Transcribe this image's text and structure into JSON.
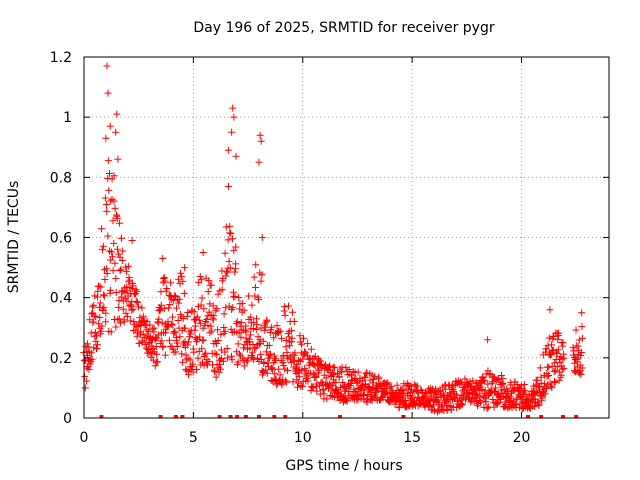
{
  "chart_data": {
    "type": "scatter",
    "title": "Day 196 of 2025, SRMTID for receiver pygr",
    "xlabel": "GPS time / hours",
    "ylabel": "SRMTID / TECUs",
    "xlim": [
      0,
      24
    ],
    "ylim": [
      0,
      1.2
    ],
    "xticks": [
      0,
      5,
      10,
      15,
      20
    ],
    "xtick_labels": [
      "0",
      "5",
      "10",
      "15",
      "20"
    ],
    "yticks": [
      0,
      0.2,
      0.4,
      0.6,
      0.8,
      1,
      1.2
    ],
    "ytick_labels": [
      "0",
      "0.2",
      "0.4",
      "0.6",
      "0.8",
      "1",
      "1.2"
    ],
    "grid": true,
    "series_color": "#ff0000",
    "marker": "plus",
    "envelope": {
      "x": [
        0.0,
        0.3,
        0.6,
        0.9,
        1.2,
        1.5,
        1.8,
        2.1,
        2.5,
        3.0,
        3.3,
        3.6,
        4.0,
        4.4,
        4.8,
        5.2,
        5.6,
        6.0,
        6.3,
        6.6,
        6.9,
        7.2,
        7.6,
        8.0,
        8.3,
        8.6,
        9.0,
        9.4,
        9.8,
        10.2,
        10.6,
        11.0,
        11.5,
        12.0,
        12.5,
        13.0,
        13.5,
        14.0,
        14.5,
        15.0,
        15.5,
        16.0,
        16.5,
        17.0,
        17.5,
        18.0,
        18.5,
        19.0,
        19.5,
        20.0,
        20.4,
        20.8,
        21.1,
        21.4,
        21.7,
        22.0,
        22.4,
        22.8
      ],
      "low": [
        0.08,
        0.18,
        0.22,
        0.3,
        0.28,
        0.3,
        0.32,
        0.32,
        0.25,
        0.2,
        0.16,
        0.2,
        0.22,
        0.18,
        0.14,
        0.16,
        0.18,
        0.13,
        0.16,
        0.2,
        0.18,
        0.16,
        0.2,
        0.14,
        0.12,
        0.12,
        0.1,
        0.12,
        0.1,
        0.1,
        0.08,
        0.06,
        0.06,
        0.05,
        0.06,
        0.05,
        0.06,
        0.05,
        0.03,
        0.04,
        0.04,
        0.02,
        0.02,
        0.03,
        0.05,
        0.04,
        0.03,
        0.04,
        0.03,
        0.03,
        0.03,
        0.04,
        0.08,
        0.1,
        0.12,
        0.14,
        0.15,
        0.12
      ],
      "high": [
        0.2,
        0.35,
        0.45,
        0.75,
        0.9,
        0.8,
        0.55,
        0.5,
        0.4,
        0.32,
        0.3,
        0.48,
        0.46,
        0.5,
        0.35,
        0.45,
        0.55,
        0.35,
        0.5,
        0.8,
        0.6,
        0.4,
        0.45,
        0.6,
        0.35,
        0.3,
        0.35,
        0.4,
        0.3,
        0.25,
        0.22,
        0.18,
        0.17,
        0.17,
        0.16,
        0.15,
        0.14,
        0.12,
        0.12,
        0.12,
        0.1,
        0.1,
        0.11,
        0.13,
        0.13,
        0.12,
        0.16,
        0.15,
        0.12,
        0.13,
        0.08,
        0.15,
        0.25,
        0.3,
        0.3,
        0.26,
        0.3,
        0.32
      ]
    },
    "peaks": [
      {
        "x": 1.05,
        "y": 1.17
      },
      {
        "x": 1.1,
        "y": 1.08
      },
      {
        "x": 1.5,
        "y": 1.01
      },
      {
        "x": 1.2,
        "y": 0.97
      },
      {
        "x": 1.45,
        "y": 0.95
      },
      {
        "x": 1.0,
        "y": 0.93
      },
      {
        "x": 1.55,
        "y": 0.86
      },
      {
        "x": 6.8,
        "y": 1.03
      },
      {
        "x": 6.85,
        "y": 1.0
      },
      {
        "x": 6.75,
        "y": 0.95
      },
      {
        "x": 6.6,
        "y": 0.89
      },
      {
        "x": 6.95,
        "y": 0.87
      },
      {
        "x": 8.05,
        "y": 0.94
      },
      {
        "x": 8.1,
        "y": 0.92
      },
      {
        "x": 8.0,
        "y": 0.85
      },
      {
        "x": 8.15,
        "y": 0.6
      },
      {
        "x": 2.2,
        "y": 0.59
      },
      {
        "x": 3.6,
        "y": 0.53
      },
      {
        "x": 4.6,
        "y": 0.5
      },
      {
        "x": 5.45,
        "y": 0.55
      },
      {
        "x": 18.45,
        "y": 0.26
      },
      {
        "x": 21.3,
        "y": 0.36
      },
      {
        "x": 22.75,
        "y": 0.35
      }
    ],
    "zero_markers_x": [
      0.8,
      3.5,
      4.2,
      4.5,
      6.2,
      6.7,
      7.0,
      7.4,
      8.0,
      8.7,
      9.2,
      11.7,
      14.6,
      20.3,
      20.9,
      21.9,
      22.5
    ]
  }
}
